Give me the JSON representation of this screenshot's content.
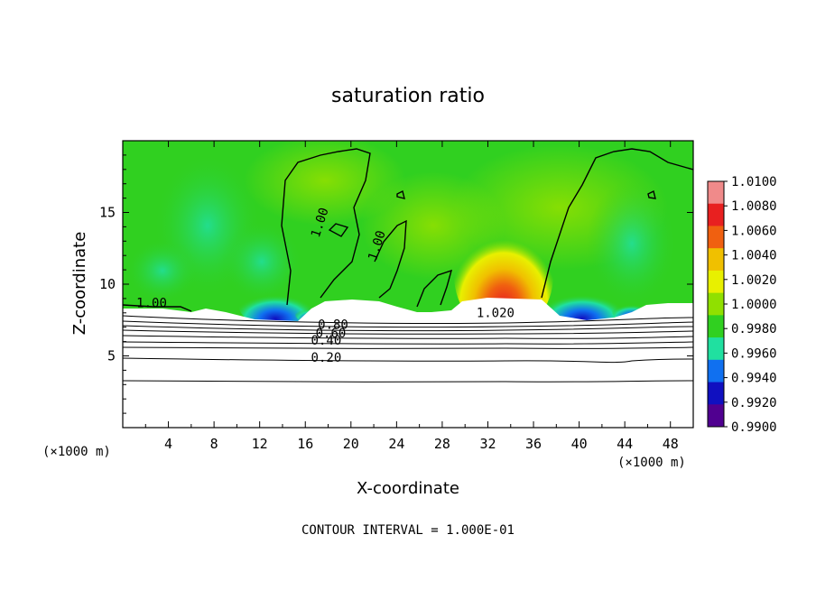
{
  "chart_data": {
    "type": "heatmap",
    "title": "saturation ratio",
    "xlabel": "X-coordinate",
    "ylabel": "Z-coordinate",
    "x_unit_label": "(×1000 m)",
    "z_unit_label": "(×1000 m)",
    "xlim": [
      0,
      50
    ],
    "ylim": [
      0,
      20
    ],
    "x_ticks": [
      4,
      8,
      12,
      16,
      20,
      24,
      28,
      32,
      36,
      40,
      44,
      48
    ],
    "y_ticks": [
      5,
      10,
      15
    ],
    "footer": "CONTOUR INTERVAL = 1.000E-01",
    "colorbar": {
      "levels": [
        "1.0100",
        "1.0080",
        "1.0060",
        "1.0040",
        "1.0020",
        "1.0000",
        "0.9980",
        "0.9960",
        "0.9940",
        "0.9920",
        "0.9900"
      ],
      "colors": [
        "#f08a8a",
        "#e82020",
        "#f06010",
        "#f0c000",
        "#e8f000",
        "#90e000",
        "#30d020",
        "#20e0a0",
        "#1070f0",
        "#1010c0",
        "#500090"
      ]
    },
    "contour_labels": [
      {
        "text": "1.00",
        "x": 1.2,
        "z": 8.4
      },
      {
        "text": "1.00",
        "x": 17.2,
        "z": 13.2
      },
      {
        "text": "1.00",
        "x": 22.2,
        "z": 11.6
      },
      {
        "text": "0.80",
        "x": 17.1,
        "z": 6.9
      },
      {
        "text": "0.60",
        "x": 16.9,
        "z": 6.3
      },
      {
        "text": "0.40",
        "x": 16.5,
        "z": 5.8
      },
      {
        "text": "0.20",
        "x": 16.5,
        "z": 4.6
      },
      {
        "text": "1.020",
        "x": 31.0,
        "z": 7.7
      }
    ]
  }
}
